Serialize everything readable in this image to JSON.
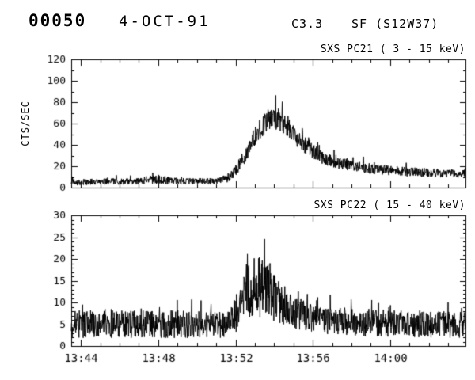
{
  "header": {
    "event_number": "00050",
    "date": "4-OCT-91",
    "goes_class": "C3.3",
    "flare": "SF (S12W37)"
  },
  "chart_data": [
    {
      "type": "line",
      "title": "SXS PC21 (  3 - 15 keV)",
      "ylabel": "CTS/SEC",
      "ylim": [
        0,
        120
      ],
      "yticks": [
        0,
        20,
        40,
        60,
        80,
        100,
        120
      ],
      "y_minor_step": 10,
      "xlim_minutes": [
        -0.5,
        19.9
      ],
      "x_tick_minutes": [
        0,
        4,
        8,
        12,
        16
      ],
      "x_tick_labels": [
        "13:44",
        "13:48",
        "13:52",
        "13:56",
        "14:00"
      ],
      "x_minor_step": 1,
      "grid": false,
      "legend": false,
      "series_name": "SXS PC21 counts",
      "envelope_t_mean_noise": [
        [
          -0.5,
          5,
          3
        ],
        [
          3,
          6,
          3
        ],
        [
          4,
          8,
          4.5
        ],
        [
          5,
          6,
          3
        ],
        [
          7,
          6,
          3
        ],
        [
          7.6,
          9,
          4
        ],
        [
          8,
          16,
          5
        ],
        [
          8.5,
          30,
          7
        ],
        [
          9,
          48,
          9
        ],
        [
          9.5,
          60,
          10
        ],
        [
          9.9,
          66,
          11
        ],
        [
          10.4,
          62,
          10
        ],
        [
          11,
          50,
          9
        ],
        [
          11.7,
          38,
          7.5
        ],
        [
          12.5,
          28,
          6
        ],
        [
          13.5,
          22,
          5.5
        ],
        [
          15,
          18,
          5
        ],
        [
          16.5,
          15,
          4.5
        ],
        [
          18,
          14,
          4
        ],
        [
          19.9,
          13,
          4
        ]
      ],
      "peak_value_approx": 87,
      "peak_time": "13:54",
      "spike_prob": 0.06,
      "spike_mult": 1.4,
      "seed": 12
    },
    {
      "type": "line",
      "title": "SXS PC22 ( 15 - 40 keV)",
      "ylabel": "",
      "ylim": [
        0,
        30
      ],
      "yticks": [
        0,
        5,
        10,
        15,
        20,
        25,
        30
      ],
      "y_minor_step": 1,
      "xlim_minutes": [
        -0.5,
        19.9
      ],
      "x_tick_minutes": [
        0,
        4,
        8,
        12,
        16
      ],
      "x_tick_labels": [
        "13:44",
        "13:48",
        "13:52",
        "13:56",
        "14:00"
      ],
      "x_minor_step": 1,
      "grid": false,
      "legend": false,
      "series_name": "SXS PC22 counts",
      "envelope_t_mean_noise": [
        [
          -0.5,
          5,
          3.2
        ],
        [
          7.7,
          5,
          3.2
        ],
        [
          8.1,
          8,
          4.5
        ],
        [
          8.5,
          12,
          6.5
        ],
        [
          9,
          13.5,
          7.5
        ],
        [
          9.5,
          13,
          7
        ],
        [
          10,
          11,
          5.5
        ],
        [
          10.6,
          9,
          4.5
        ],
        [
          11.3,
          7.5,
          3.8
        ],
        [
          12.5,
          6,
          3.2
        ],
        [
          14,
          5.5,
          3.2
        ],
        [
          19.9,
          4.8,
          3
        ]
      ],
      "peak_value_approx": 28,
      "peak_time": "13:53",
      "spike_prob": 0.05,
      "spike_mult": 1.5,
      "seed": 99
    }
  ]
}
